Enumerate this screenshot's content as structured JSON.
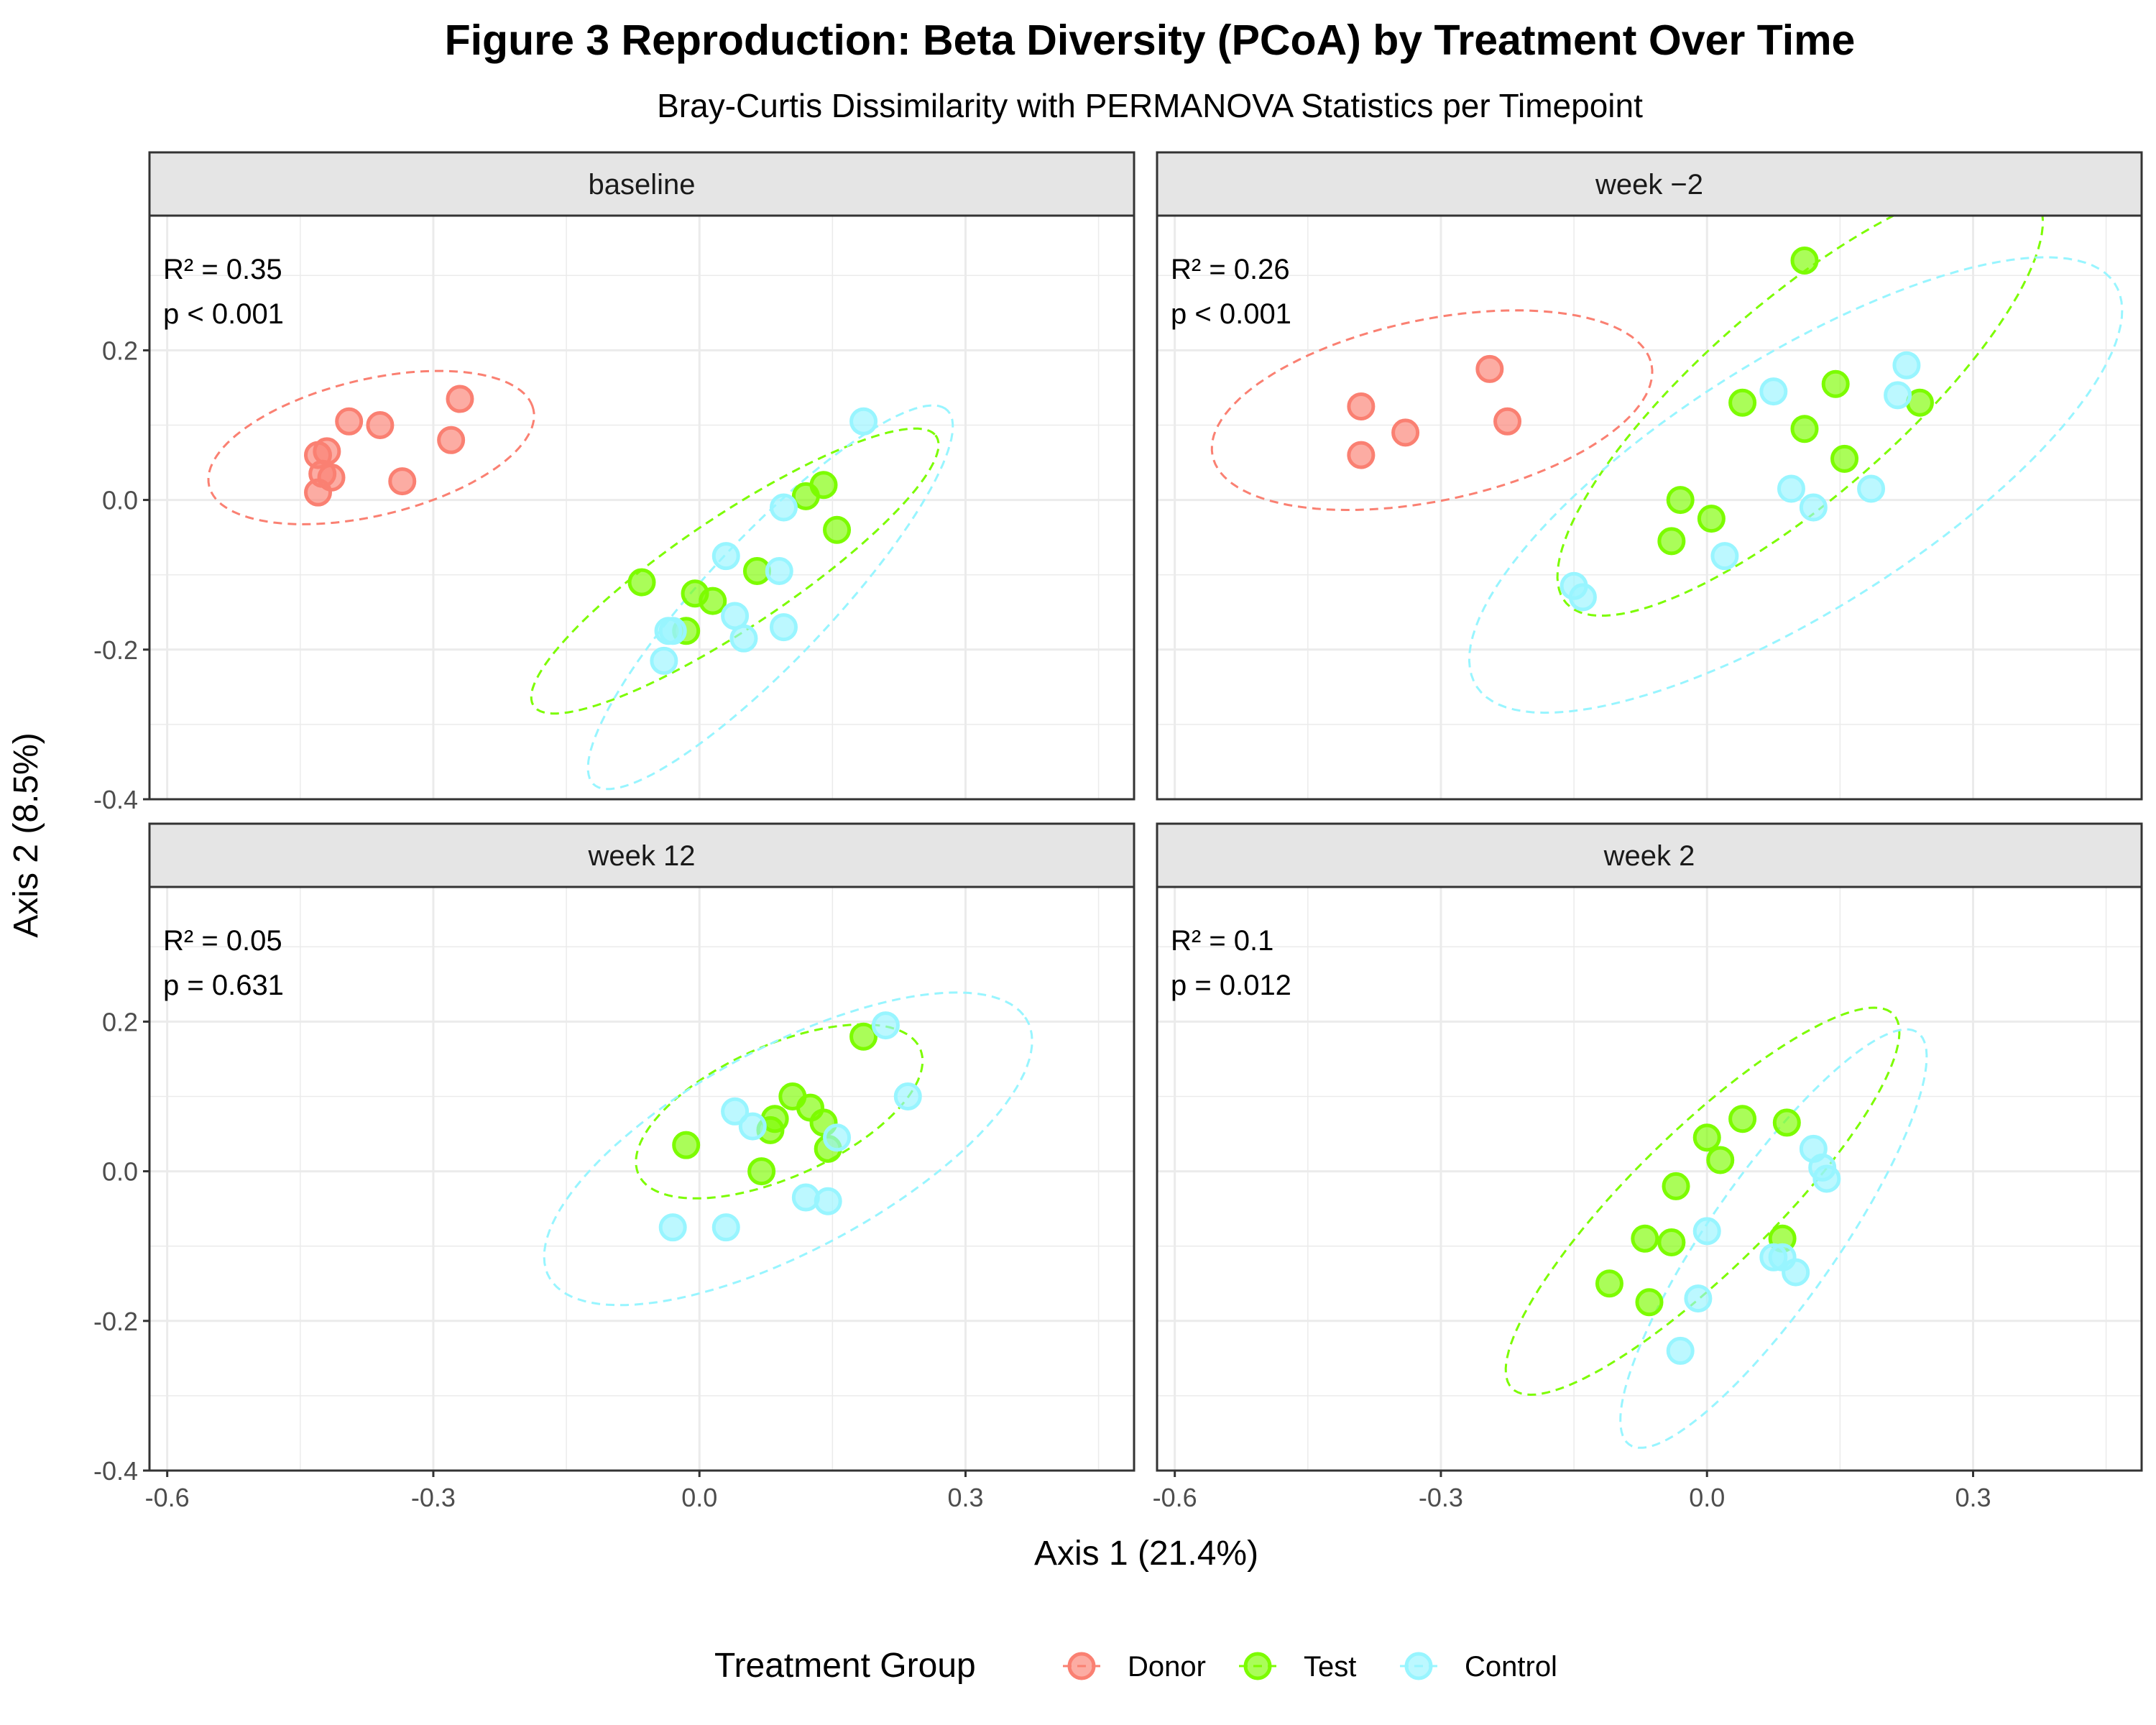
{
  "chart_data": {
    "type": "scatter",
    "title": "Figure 3 Reproduction: Beta Diversity (PCoA) by Treatment Over Time",
    "subtitle": "Bray-Curtis Dissimilarity with PERMANOVA Statistics per Timepoint",
    "xlabel": "Axis 1 (21.4%)",
    "ylabel": "Axis 2 (8.5%)",
    "xlim": [
      -0.62,
      0.49
    ],
    "ylim": [
      -0.4,
      0.38
    ],
    "x_ticks": [
      -0.6,
      -0.3,
      0.0,
      0.3
    ],
    "x_tick_labels": [
      "-0.6",
      "-0.3",
      "0.0",
      "0.3"
    ],
    "y_ticks": [
      -0.4,
      -0.2,
      0.0,
      0.2
    ],
    "y_tick_labels": [
      "-0.4",
      "-0.2",
      "0.0",
      "0.2"
    ],
    "grid": true,
    "legend": {
      "title": "Treatment Group",
      "position": "bottom",
      "entries": [
        "Donor",
        "Test",
        "Control"
      ]
    },
    "colors": {
      "Donor": "#FA8072",
      "Test": "#7CFC00",
      "Control": "#98F5FF"
    },
    "panels": [
      {
        "label": "baseline",
        "r2_text": "R² = 0.35",
        "p_text": "p < 0.001",
        "series": [
          {
            "name": "Donor",
            "x": [
              -0.43,
              -0.425,
              -0.42,
              -0.415,
              -0.43,
              -0.395,
              -0.36,
              -0.335,
              -0.28,
              -0.27
            ],
            "y": [
              0.06,
              0.035,
              0.065,
              0.03,
              0.01,
              0.105,
              0.1,
              0.025,
              0.08,
              0.135
            ]
          },
          {
            "name": "Test",
            "x": [
              -0.065,
              -0.015,
              -0.005,
              0.015,
              0.065,
              0.12,
              0.14,
              0.155
            ],
            "y": [
              -0.11,
              -0.175,
              -0.125,
              -0.135,
              -0.095,
              0.005,
              0.02,
              -0.04
            ]
          },
          {
            "name": "Control",
            "x": [
              -0.04,
              -0.035,
              -0.03,
              0.03,
              0.04,
              0.05,
              0.09,
              0.095,
              0.095,
              0.185
            ],
            "y": [
              -0.215,
              -0.175,
              -0.175,
              -0.075,
              -0.155,
              -0.185,
              -0.095,
              -0.01,
              -0.17,
              0.105
            ]
          }
        ],
        "ellipses": [
          {
            "group": "Donor",
            "center": [
              -0.37,
              0.07
            ],
            "semi_axes": [
              0.19,
              0.09
            ],
            "angle_deg": 17
          },
          {
            "group": "Test",
            "center": [
              0.04,
              -0.095
            ],
            "semi_axes": [
              0.29,
              0.07
            ],
            "angle_deg": 39
          },
          {
            "group": "Control",
            "center": [
              0.08,
              -0.13
            ],
            "semi_axes": [
              0.32,
              0.075
            ],
            "angle_deg": 52
          }
        ]
      },
      {
        "label": "week −2",
        "r2_text": "R² = 0.26",
        "p_text": "p < 0.001",
        "series": [
          {
            "name": "Donor",
            "x": [
              -0.39,
              -0.39,
              -0.34,
              -0.245,
              -0.225
            ],
            "y": [
              0.125,
              0.06,
              0.09,
              0.175,
              0.105
            ]
          },
          {
            "name": "Test",
            "x": [
              -0.04,
              -0.03,
              0.005,
              0.04,
              0.11,
              0.11,
              0.145,
              0.155,
              0.24
            ],
            "y": [
              -0.055,
              0.0,
              -0.025,
              0.13,
              0.32,
              0.095,
              0.155,
              0.055,
              0.13
            ]
          },
          {
            "name": "Control",
            "x": [
              -0.15,
              -0.14,
              0.02,
              0.075,
              0.095,
              0.12,
              0.185,
              0.215,
              0.225
            ],
            "y": [
              -0.115,
              -0.13,
              -0.075,
              0.145,
              0.015,
              -0.01,
              0.015,
              0.14,
              0.18
            ]
          }
        ],
        "ellipses": [
          {
            "group": "Donor",
            "center": [
              -0.31,
              0.12
            ],
            "semi_axes": [
              0.255,
              0.12
            ],
            "angle_deg": 15
          },
          {
            "group": "Test",
            "center": [
              0.105,
              0.135
            ],
            "semi_axes": [
              0.38,
              0.12
            ],
            "angle_deg": 47
          },
          {
            "group": "Control",
            "center": [
              0.1,
              0.02
            ],
            "semi_axes": [
              0.45,
              0.16
            ],
            "angle_deg": 38
          }
        ]
      },
      {
        "label": "week 12",
        "r2_text": "R² = 0.05",
        "p_text": "p = 0.631",
        "series": [
          {
            "name": "Test",
            "x": [
              -0.015,
              0.07,
              0.08,
              0.085,
              0.105,
              0.125,
              0.14,
              0.145,
              0.185
            ],
            "y": [
              0.035,
              0.0,
              0.055,
              0.07,
              0.1,
              0.085,
              0.065,
              0.03,
              0.18
            ]
          },
          {
            "name": "Control",
            "x": [
              -0.03,
              0.03,
              0.04,
              0.06,
              0.12,
              0.145,
              0.155,
              0.21,
              0.235
            ],
            "y": [
              -0.075,
              -0.075,
              0.08,
              0.06,
              -0.035,
              -0.04,
              0.045,
              0.195,
              0.1
            ]
          }
        ],
        "ellipses": [
          {
            "group": "Test",
            "center": [
              0.09,
              0.08
            ],
            "semi_axes": [
              0.18,
              0.085
            ],
            "angle_deg": 30
          },
          {
            "group": "Control",
            "center": [
              0.1,
              0.03
            ],
            "semi_axes": [
              0.32,
              0.13
            ],
            "angle_deg": 34
          }
        ]
      },
      {
        "label": "week 2",
        "r2_text": "R² = 0.1",
        "p_text": "p = 0.012",
        "series": [
          {
            "name": "Test",
            "x": [
              -0.11,
              -0.07,
              -0.065,
              -0.04,
              -0.035,
              0.0,
              0.015,
              0.04,
              0.085,
              0.09
            ],
            "y": [
              -0.15,
              -0.09,
              -0.175,
              -0.095,
              -0.02,
              0.045,
              0.015,
              0.07,
              -0.09,
              0.065
            ]
          },
          {
            "name": "Control",
            "x": [
              -0.03,
              -0.01,
              0.0,
              0.075,
              0.085,
              0.1,
              0.12,
              0.13,
              0.135
            ],
            "y": [
              -0.24,
              -0.17,
              -0.08,
              -0.115,
              -0.115,
              -0.135,
              0.03,
              0.005,
              -0.01
            ]
          }
        ],
        "ellipses": [
          {
            "group": "Test",
            "center": [
              -0.005,
              -0.04
            ],
            "semi_axes": [
              0.33,
              0.085
            ],
            "angle_deg": 50
          },
          {
            "group": "Control",
            "center": [
              0.075,
              -0.09
            ],
            "semi_axes": [
              0.32,
              0.075
            ],
            "angle_deg": 60
          }
        ]
      }
    ]
  }
}
